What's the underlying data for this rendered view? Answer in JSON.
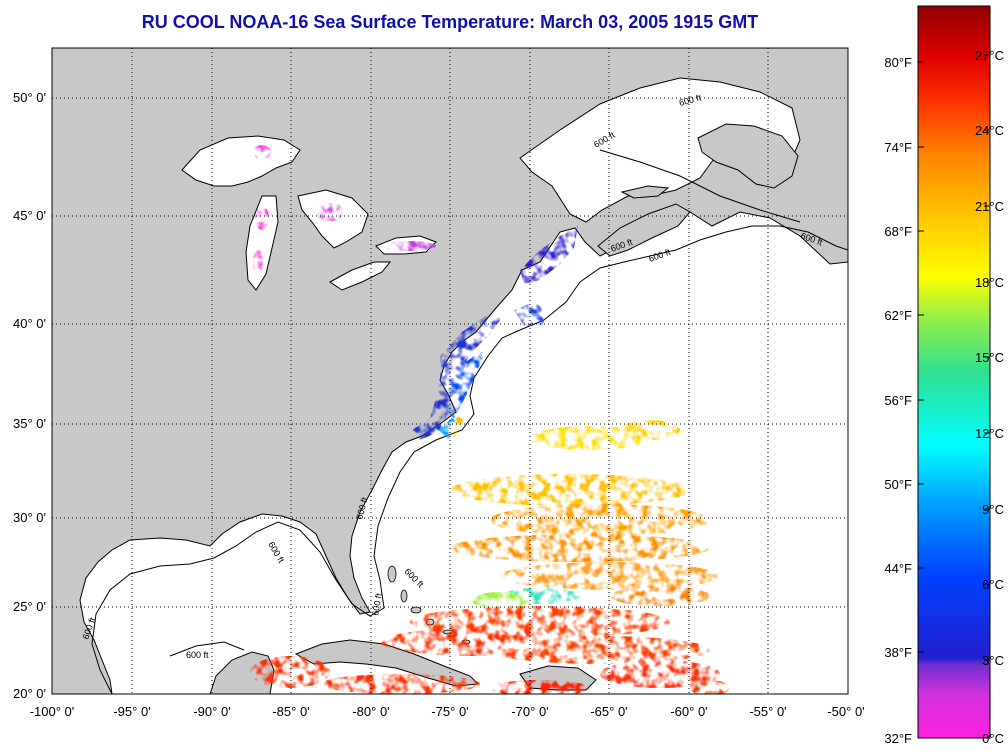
{
  "title": "RU COOL  NOAA-16  Sea Surface Temperature:  March 03, 2005 1915 GMT",
  "map": {
    "lon_range": [
      -100,
      -50
    ],
    "lat_range": [
      20,
      52.2
    ],
    "lon_ticks": [
      "-100° 0'",
      "-95° 0'",
      "-90° 0'",
      "-85° 0'",
      "-80° 0'",
      "-75° 0'",
      "-70° 0'",
      "-65° 0'",
      "-60° 0'",
      "-55° 0'",
      "-50° 0'"
    ],
    "lat_ticks": [
      "20° 0'",
      "25° 0'",
      "30° 0'",
      "35° 0'",
      "40° 0'",
      "45° 0'",
      "50° 0'"
    ],
    "grid": "dotted",
    "land_color": "#c8c8c8",
    "ocean_color": "#ffffff",
    "contour_label": "600 ft"
  },
  "colorbar": {
    "fahrenheit_labels": [
      "80°F",
      "74°F",
      "68°F",
      "62°F",
      "56°F",
      "50°F",
      "44°F",
      "38°F",
      "32°F"
    ],
    "celsius_labels": [
      "27°C",
      "24°C",
      "21°C",
      "18°C",
      "15°C",
      "12°C",
      "9°C",
      "6°C",
      "3°C",
      "0°C"
    ],
    "range_c": [
      0,
      29
    ],
    "colors": [
      "#ff20e0",
      "#b040e0",
      "#3020d0",
      "#0040ff",
      "#00a0ff",
      "#00ffff",
      "#30e090",
      "#a0f040",
      "#ffff00",
      "#ffc000",
      "#ff8000",
      "#ff3000",
      "#e00000",
      "#900000"
    ]
  }
}
